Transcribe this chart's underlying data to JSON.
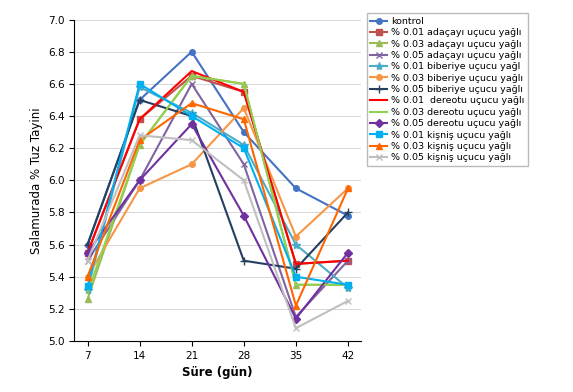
{
  "x": [
    7,
    14,
    21,
    28,
    35,
    42
  ],
  "series": [
    {
      "label": "kontrol",
      "color": "#4472C4",
      "marker": "o",
      "markersize": 4,
      "linewidth": 1.5,
      "values": [
        5.6,
        6.5,
        6.8,
        6.3,
        5.95,
        5.78
      ]
    },
    {
      "label": "% 0.01 adaçayı uçucu yağlı",
      "color": "#C0504D",
      "marker": "s",
      "markersize": 4,
      "linewidth": 1.5,
      "values": [
        5.55,
        6.38,
        6.65,
        6.55,
        5.48,
        5.5
      ]
    },
    {
      "label": "% 0.03 adaçayı uçucu yağlı",
      "color": "#9BBB59",
      "marker": "^",
      "markersize": 4,
      "linewidth": 1.5,
      "values": [
        5.26,
        6.22,
        6.65,
        6.6,
        5.35,
        5.35
      ]
    },
    {
      "label": "% 0.05 adaçayı uçucu yağlı",
      "color": "#8064A2",
      "marker": "x",
      "markersize": 5,
      "linewidth": 1.5,
      "values": [
        5.5,
        6.0,
        6.6,
        6.1,
        5.15,
        5.5
      ]
    },
    {
      "label": "% 0.01 biberiye uçucu yağl",
      "color": "#4BACC6",
      "marker": "*",
      "markersize": 6,
      "linewidth": 1.5,
      "values": [
        5.32,
        6.58,
        6.42,
        6.22,
        5.6,
        5.33
      ]
    },
    {
      "label": "% 0.03 biberiye uçucu yağlı",
      "color": "#F79646",
      "marker": "o",
      "markersize": 4,
      "linewidth": 1.5,
      "values": [
        5.4,
        5.95,
        6.1,
        6.45,
        5.65,
        5.95
      ]
    },
    {
      "label": "% 0.05 biberiye uçucu yağlı",
      "color": "#243F60",
      "marker": "+",
      "markersize": 6,
      "linewidth": 1.5,
      "values": [
        5.6,
        6.5,
        6.4,
        5.5,
        5.45,
        5.8
      ]
    },
    {
      "label": "% 0.01  dereotu uçucu yağlı",
      "color": "#FF0000",
      "marker": "None",
      "markersize": 4,
      "linewidth": 1.5,
      "values": [
        5.55,
        6.38,
        6.68,
        6.55,
        5.48,
        5.5
      ]
    },
    {
      "label": "% 0.03 dereotu uçucu yağlı",
      "color": "#92D050",
      "marker": "None",
      "markersize": 4,
      "linewidth": 1.5,
      "values": [
        5.3,
        6.22,
        6.65,
        6.6,
        5.35,
        5.35
      ]
    },
    {
      "label": "% 0.05 dereotu uçucu yağlı",
      "color": "#7030A0",
      "marker": "D",
      "markersize": 4,
      "linewidth": 1.5,
      "values": [
        5.55,
        6.0,
        6.35,
        5.78,
        5.14,
        5.55
      ]
    },
    {
      "label": "% 0.01 kişniş uçucu yağlı",
      "color": "#00B0F0",
      "marker": "s",
      "markersize": 4,
      "linewidth": 1.5,
      "values": [
        5.34,
        6.6,
        6.4,
        6.2,
        5.4,
        5.35
      ]
    },
    {
      "label": "% 0.03 kişniş uçucu yağlı",
      "color": "#FF6600",
      "marker": "^",
      "markersize": 4,
      "linewidth": 1.5,
      "values": [
        5.4,
        6.25,
        6.48,
        6.38,
        5.22,
        5.95
      ]
    },
    {
      "label": "% 0.05 kişniş uçucu yağlı",
      "color": "#BFBFBF",
      "marker": "x",
      "markersize": 5,
      "linewidth": 1.5,
      "values": [
        5.5,
        6.28,
        6.25,
        6.0,
        5.08,
        5.25
      ]
    }
  ],
  "xlabel": "Süre (gün)",
  "ylabel": "Salamurada % Tuz Tayini",
  "ylim": [
    5.0,
    7.0
  ],
  "yticks": [
    5.0,
    5.2,
    5.4,
    5.6,
    5.8,
    6.0,
    6.2,
    6.4,
    6.6,
    6.8,
    7.0
  ],
  "xticks": [
    7,
    14,
    21,
    28,
    35,
    42
  ],
  "legend_fontsize": 6.8,
  "axis_label_fontsize": 8.5,
  "tick_fontsize": 7.5,
  "xlabel_bold": true
}
